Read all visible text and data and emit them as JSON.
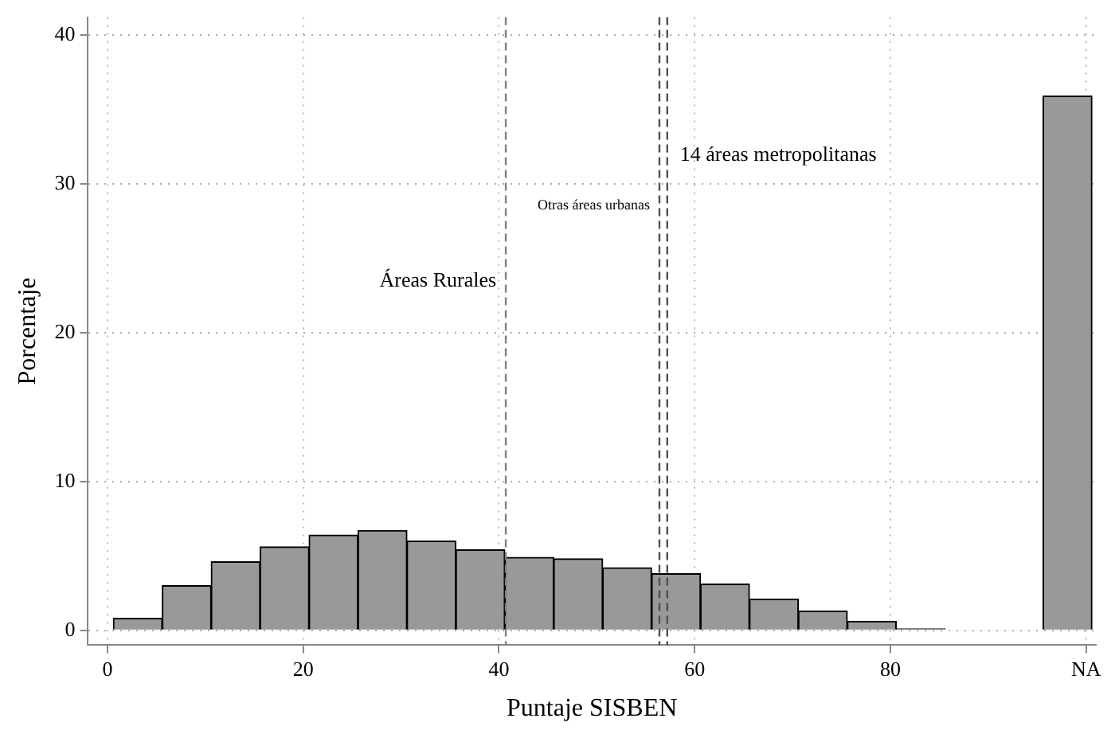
{
  "chart_data": {
    "type": "histogram",
    "xlabel": "Puntaje SISBEN",
    "ylabel": "Porcentaje",
    "bins": [
      0.6,
      5.6,
      10.6,
      15.6,
      20.6,
      25.6,
      30.6,
      35.6,
      40.6,
      45.6,
      50.6,
      55.6,
      60.6,
      65.6,
      70.6,
      75.6,
      80.6,
      85.6,
      90.6,
      95.6,
      100.6
    ],
    "values": [
      0.8,
      3.0,
      4.6,
      5.6,
      6.4,
      6.7,
      6.0,
      5.4,
      4.9,
      4.8,
      4.2,
      3.8,
      3.1,
      2.1,
      1.3,
      0.6,
      0.1,
      0,
      0,
      35.9
    ],
    "color": "#999999",
    "xlim": [
      -2,
      101
    ],
    "xticks": [
      0,
      20,
      40,
      60,
      80,
      {
        "value": 100,
        "label": "NA"
      }
    ],
    "ylim": [
      -1,
      41.2
    ],
    "yticks": [
      0,
      10,
      20,
      30,
      40
    ],
    "grid": true,
    "ref_lines": [
      {
        "axis": "x",
        "value": 40.7,
        "color": "#808080",
        "line_style": "dashed",
        "label": "Áreas Rurales"
      },
      {
        "axis": "x",
        "value": 56.4,
        "color": "#505050",
        "line_style": "dashed",
        "label": "Otras áreas urbanas"
      },
      {
        "axis": "x",
        "value": 57.2,
        "color": "#505050",
        "line_style": "dashed",
        "label": "14 áreas metropolitanas"
      }
    ]
  }
}
